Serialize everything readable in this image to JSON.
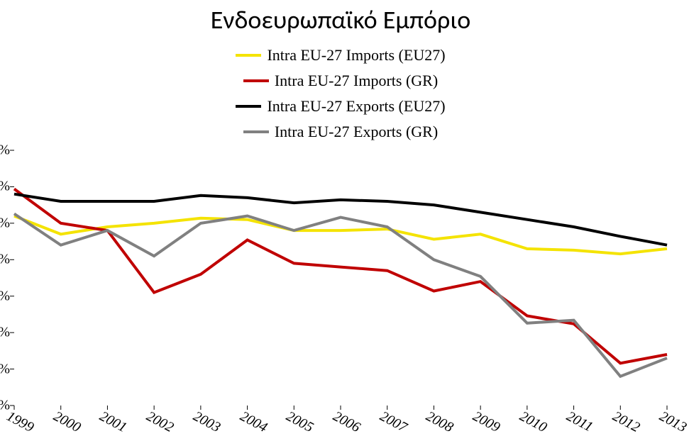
{
  "chart": {
    "type": "line",
    "title": "Ενδοευρωπαϊκό Εμπόριο",
    "title_fontsize": 36,
    "background_color": "#ffffff",
    "line_width": 4,
    "ylim": [
      40,
      75
    ],
    "ytick_step": 5,
    "ytick_suffix": "%",
    "xticks": [
      "1999",
      "2000",
      "2001",
      "2002",
      "2003",
      "2004",
      "2005",
      "2006",
      "2007",
      "2008",
      "2009",
      "2010",
      "2011",
      "2012",
      "2013"
    ],
    "xtick_rotate_deg": 28,
    "xtick_font_italic": true,
    "axis_color": "#000000",
    "label_font": "Times New Roman",
    "legend": {
      "position": "top-center",
      "items": [
        {
          "label": "Intra EU-27 Imports (EU27)",
          "color": "#f4e300",
          "series_key": "imports_eu27"
        },
        {
          "label": "Intra EU-27 Imports (GR)",
          "color": "#c00000",
          "series_key": "imports_gr"
        },
        {
          "label": "Intra EU-27 Exports (EU27)",
          "color": "#000000",
          "series_key": "exports_eu27"
        },
        {
          "label": "Intra EU-27 Exports (GR)",
          "color": "#808080",
          "series_key": "exports_gr"
        }
      ]
    },
    "series": {
      "imports_eu27": {
        "color": "#f4e300",
        "values": [
          66.0,
          63.5,
          64.5,
          65.0,
          65.7,
          65.5,
          64.0,
          64.0,
          64.2,
          62.8,
          63.5,
          61.5,
          61.3,
          60.8,
          61.5
        ]
      },
      "imports_gr": {
        "color": "#c00000",
        "values": [
          69.7,
          65.0,
          64.0,
          55.5,
          58.0,
          62.7,
          59.5,
          59.0,
          58.5,
          55.7,
          57.0,
          52.3,
          51.2,
          45.8,
          47.0
        ]
      },
      "exports_eu27": {
        "color": "#000000",
        "values": [
          69.0,
          68.0,
          68.0,
          68.0,
          68.8,
          68.5,
          67.8,
          68.2,
          68.0,
          67.5,
          66.5,
          65.5,
          64.5,
          63.2,
          62.0
        ]
      },
      "exports_gr": {
        "color": "#808080",
        "values": [
          66.3,
          62.0,
          64.0,
          60.5,
          65.0,
          66.0,
          64.0,
          65.8,
          64.5,
          60.0,
          57.7,
          51.3,
          51.7,
          44.0,
          46.5
        ]
      }
    }
  }
}
